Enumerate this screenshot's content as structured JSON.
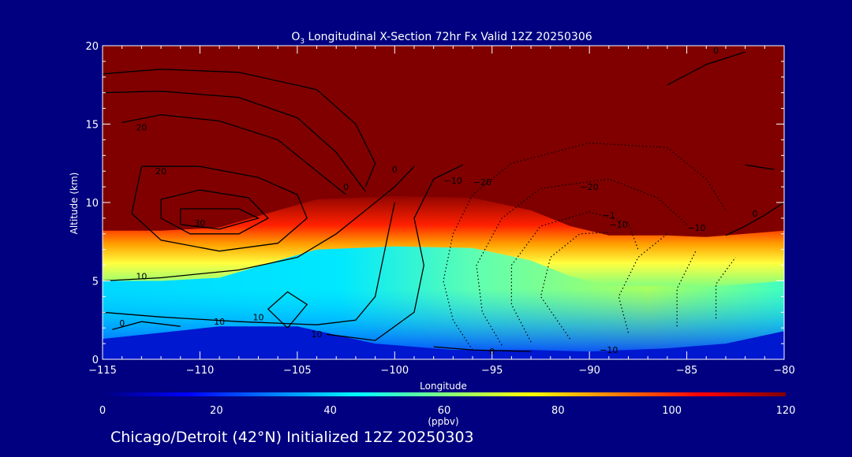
{
  "colors": {
    "background": "#000080",
    "foreground": "#ffffff",
    "contour": "#000000",
    "stratosphere": "#800000"
  },
  "chart_data": {
    "type": "heatmap",
    "title_prefix": "O",
    "title_subscript": "3",
    "title_rest": " Longitudinal X-Section 72hr  Fx Valid 12Z 20250306",
    "xlabel": "Longitude",
    "ylabel": "Altitude (km)",
    "xlim": [
      -115,
      -80
    ],
    "ylim": [
      0,
      20
    ],
    "x_ticks": [
      -115,
      -110,
      -105,
      -100,
      -95,
      -90,
      -85,
      -80
    ],
    "x_tick_labels": [
      "−115",
      "−110",
      "−105",
      "−100",
      "−95",
      "−90",
      "−85",
      "−80"
    ],
    "y_ticks": [
      0,
      5,
      10,
      15,
      20
    ],
    "y_tick_labels": [
      "0",
      "5",
      "10",
      "15",
      "20"
    ],
    "colorbar": {
      "label": "(ppbv)",
      "range": [
        0,
        120
      ],
      "ticks": [
        0,
        20,
        40,
        60,
        80,
        100,
        120
      ],
      "tick_labels": [
        "0",
        "20",
        "40",
        "60",
        "80",
        "100",
        "120"
      ],
      "colormap": [
        "#00007f",
        "#0000ff",
        "#007fff",
        "#00ffff",
        "#7fff7f",
        "#ffff00",
        "#ff7f00",
        "#ff0000",
        "#800000"
      ]
    },
    "tropopause_height_km": [
      [
        -115,
        8.2
      ],
      [
        -112,
        8.2
      ],
      [
        -109,
        8.4
      ],
      [
        -106,
        9.5
      ],
      [
        -104,
        10.2
      ],
      [
        -100,
        10.4
      ],
      [
        -96,
        10.3
      ],
      [
        -93,
        9.5
      ],
      [
        -91,
        8.5
      ],
      [
        -89,
        7.9
      ],
      [
        -86,
        7.9
      ],
      [
        -84,
        7.8
      ],
      [
        -82,
        8.0
      ],
      [
        -80,
        8.2
      ]
    ],
    "surface_height_km": [
      [
        -115,
        1.3
      ],
      [
        -112,
        1.7
      ],
      [
        -109,
        2.1
      ],
      [
        -105,
        2.1
      ],
      [
        -101,
        1.0
      ],
      [
        -97,
        0.6
      ],
      [
        -93,
        0.6
      ],
      [
        -90,
        0.5
      ],
      [
        -86,
        0.7
      ],
      [
        -83,
        1.0
      ],
      [
        -80,
        1.8
      ]
    ],
    "contour_labels": [
      {
        "x": -113,
        "y": 14.6,
        "text": "20"
      },
      {
        "x": -112,
        "y": 11.8,
        "text": "20"
      },
      {
        "x": -110,
        "y": 8.5,
        "text": "30"
      },
      {
        "x": -113,
        "y": 5.1,
        "text": "10"
      },
      {
        "x": -109,
        "y": 2.2,
        "text": "10"
      },
      {
        "x": -107,
        "y": 2.5,
        "text": "10"
      },
      {
        "x": -104,
        "y": 1.4,
        "text": "10"
      },
      {
        "x": -114,
        "y": 2.1,
        "text": "0"
      },
      {
        "x": -102.5,
        "y": 10.8,
        "text": "0"
      },
      {
        "x": -100,
        "y": 11.9,
        "text": "0"
      },
      {
        "x": -97,
        "y": 11.2,
        "text": "−10"
      },
      {
        "x": -95.5,
        "y": 11.1,
        "text": "−20"
      },
      {
        "x": -90,
        "y": 10.8,
        "text": "−20"
      },
      {
        "x": -89,
        "y": 9.0,
        "text": "−1"
      },
      {
        "x": -88.5,
        "y": 8.4,
        "text": "−10"
      },
      {
        "x": -84.5,
        "y": 8.2,
        "text": "−10"
      },
      {
        "x": -81.5,
        "y": 9.1,
        "text": "0"
      },
      {
        "x": -83.5,
        "y": 19.5,
        "text": "0"
      },
      {
        "x": -95,
        "y": 0.3,
        "text": "0"
      },
      {
        "x": -89,
        "y": 0.4,
        "text": "−10"
      }
    ]
  },
  "footer": {
    "caption": "Chicago/Detroit (42°N) Initialized 12Z 20250303"
  }
}
